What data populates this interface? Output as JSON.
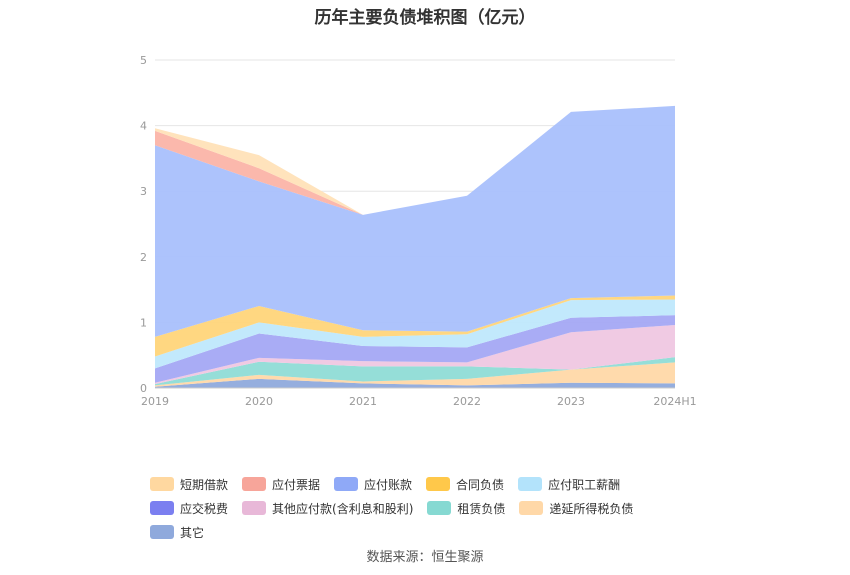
{
  "chart_data": {
    "type": "area",
    "title": "历年主要负债堆积图（亿元）",
    "categories": [
      "2019",
      "2020",
      "2021",
      "2022",
      "2023",
      "2024H1"
    ],
    "ylim": [
      0,
      5
    ],
    "yticks": [
      0,
      1,
      2,
      3,
      4,
      5
    ],
    "legend_position": "bottom",
    "grid": true,
    "series": [
      {
        "name": "其它",
        "color": "#8faadc",
        "values": [
          0.02,
          0.14,
          0.07,
          0.04,
          0.08,
          0.07
        ]
      },
      {
        "name": "递延所得税负债",
        "color": "#ffd8a8",
        "values": [
          0.02,
          0.06,
          0.03,
          0.1,
          0.2,
          0.32
        ]
      },
      {
        "name": "租赁负债",
        "color": "#8fdcd6",
        "values": [
          0.02,
          0.2,
          0.23,
          0.19,
          0.0,
          0.08
        ]
      },
      {
        "name": "其他应付款(含利息和股利)",
        "color": "#efc7e2",
        "values": [
          0.02,
          0.06,
          0.08,
          0.06,
          0.57,
          0.49
        ]
      },
      {
        "name": "应交税费",
        "color": "#a4a8f4",
        "values": [
          0.22,
          0.37,
          0.23,
          0.23,
          0.22,
          0.15
        ]
      },
      {
        "name": "应付职工薪酬",
        "color": "#bfe8fc",
        "values": [
          0.18,
          0.17,
          0.14,
          0.2,
          0.27,
          0.24
        ]
      },
      {
        "name": "合同负债",
        "color": "#ffd57a",
        "values": [
          0.3,
          0.25,
          0.1,
          0.04,
          0.03,
          0.06
        ]
      },
      {
        "name": "应付账款",
        "color": "#a9c0fc",
        "values": [
          2.92,
          1.9,
          1.76,
          2.07,
          2.84,
          2.89
        ]
      },
      {
        "name": "应付票据",
        "color": "#fbb4a8",
        "values": [
          0.22,
          0.2,
          0.0,
          0.0,
          0.0,
          0.0
        ]
      },
      {
        "name": "短期借款",
        "color": "#ffe2b8",
        "values": [
          0.04,
          0.2,
          0.0,
          0.0,
          0.0,
          0.0
        ]
      }
    ]
  },
  "legend": {
    "items": [
      {
        "label": "短期借款",
        "color": "#ffd8a0"
      },
      {
        "label": "应付票据",
        "color": "#f7a59a"
      },
      {
        "label": "应付账款",
        "color": "#8fa9f7"
      },
      {
        "label": "合同负债",
        "color": "#ffc84a"
      },
      {
        "label": "应付职工薪酬",
        "color": "#b3e3fb"
      },
      {
        "label": "应交税费",
        "color": "#7b7ff0"
      },
      {
        "label": "其他应付款(含利息和股利)",
        "color": "#e8b8d8"
      },
      {
        "label": "租赁负债",
        "color": "#86d9d2"
      },
      {
        "label": "递延所得税负债",
        "color": "#ffd8a8"
      },
      {
        "label": "其它",
        "color": "#8fa9dc"
      }
    ]
  },
  "source": "数据来源：恒生聚源"
}
